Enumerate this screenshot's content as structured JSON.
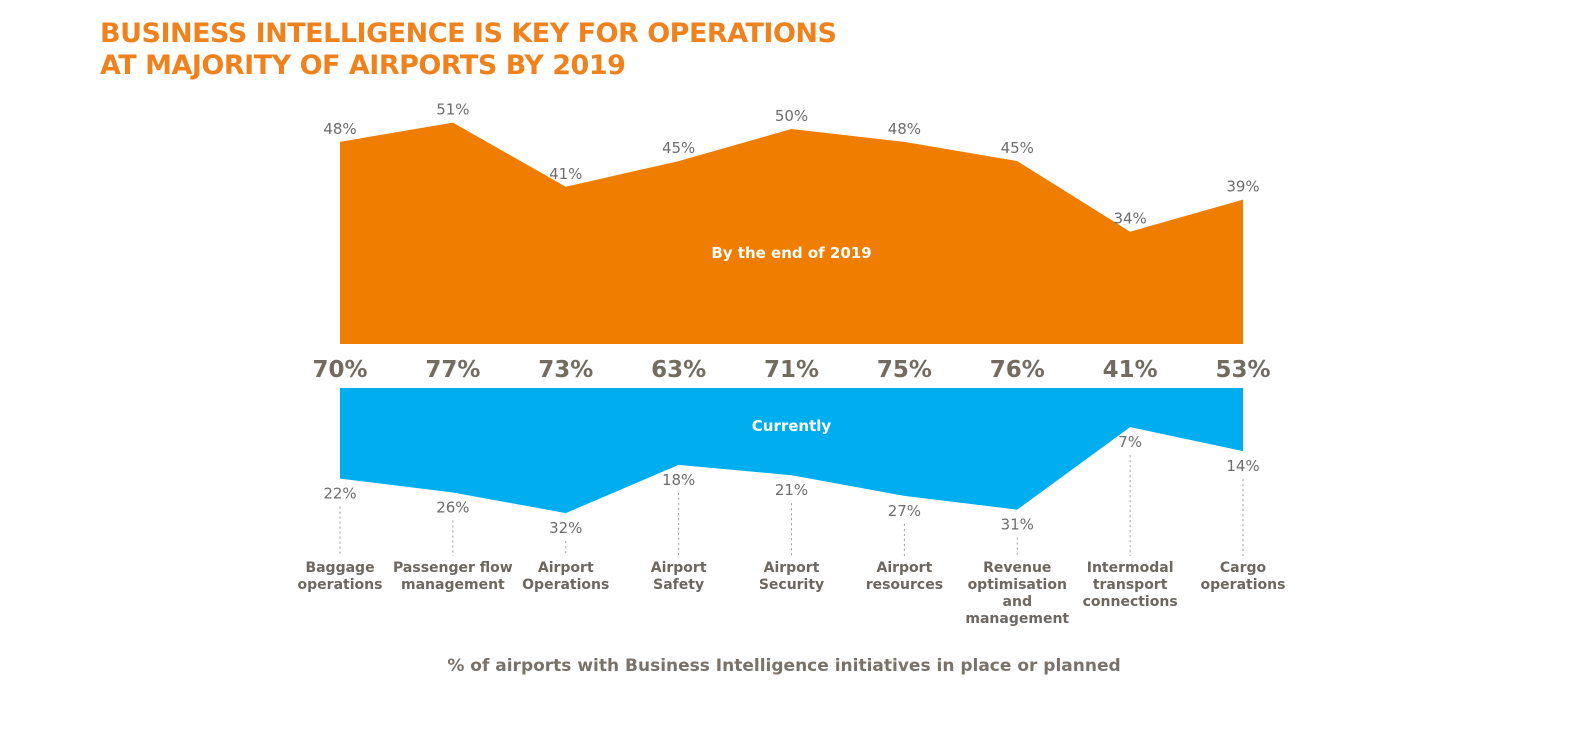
{
  "title": {
    "line1": "BUSINESS INTELLIGENCE IS KEY FOR OPERATIONS",
    "line2": "AT MAJORITY OF AIRPORTS BY 2019"
  },
  "footer": "% of airports with Business Intelligence initiatives in place or planned",
  "colors": {
    "title": "#f0821e",
    "future_area": "#ef7d00",
    "current_area": "#00aeef",
    "total_text": "#746b60",
    "label_text": "#6d6d6d",
    "category_text": "#6d6760"
  },
  "chart_data": {
    "type": "area",
    "categories": [
      "Baggage operations",
      "Passenger flow management",
      "Airport Operations",
      "Airport Safety",
      "Airport Security",
      "Airport resources",
      "Revenue optimisation and management",
      "Intermodal transport connections",
      "Cargo operations"
    ],
    "category_lines": [
      [
        "Baggage",
        "operations"
      ],
      [
        "Passenger flow",
        "management"
      ],
      [
        "Airport",
        "Operations"
      ],
      [
        "Airport",
        "Safety"
      ],
      [
        "Airport",
        "Security"
      ],
      [
        "Airport",
        "resources"
      ],
      [
        "Revenue",
        "optimisation",
        "and",
        "management"
      ],
      [
        "Intermodal",
        "transport",
        "connections"
      ],
      [
        "Cargo",
        "operations"
      ]
    ],
    "series": [
      {
        "name": "By the end of 2019",
        "values": [
          48,
          51,
          41,
          45,
          50,
          48,
          45,
          34,
          39
        ],
        "labels": [
          "48%",
          "51%",
          "41%",
          "45%",
          "50%",
          "48%",
          "45%",
          "34%",
          "39%"
        ]
      },
      {
        "name": "Currently",
        "values": [
          22,
          26,
          32,
          18,
          21,
          27,
          31,
          7,
          14
        ],
        "labels": [
          "22%",
          "26%",
          "32%",
          "18%",
          "21%",
          "27%",
          "31%",
          "7%",
          "14%"
        ]
      }
    ],
    "totals": [
      70,
      77,
      73,
      63,
      71,
      75,
      76,
      41,
      53
    ],
    "total_labels": [
      "70%",
      "77%",
      "73%",
      "63%",
      "71%",
      "75%",
      "76%",
      "41%",
      "53%"
    ]
  }
}
